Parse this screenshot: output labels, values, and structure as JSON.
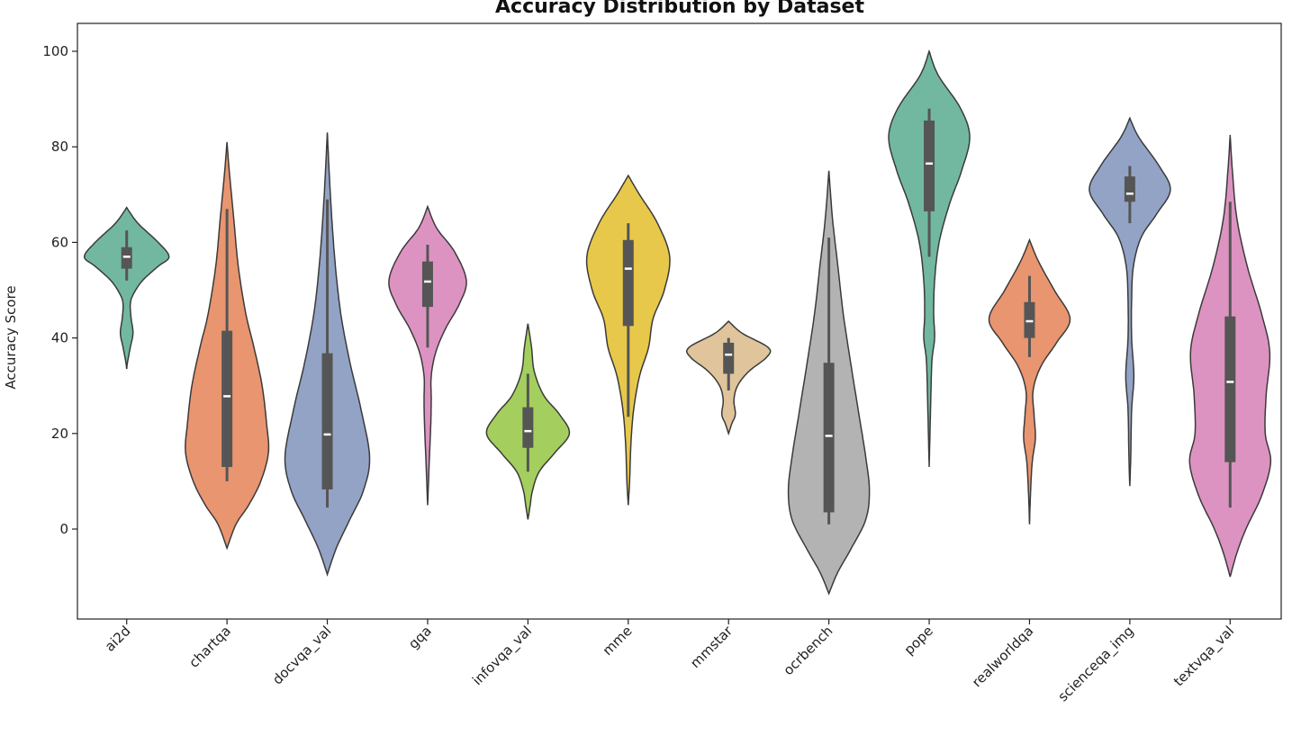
{
  "chart_data": {
    "type": "violin",
    "title": "Accuracy Distribution by Dataset",
    "xlabel": "",
    "ylabel": "Accuracy Score",
    "ylim": [
      -18,
      106
    ],
    "yticks": [
      0,
      20,
      40,
      60,
      80,
      100
    ],
    "grid": false,
    "categories": [
      "ai2d",
      "chartqa",
      "docvqa_val",
      "gqa",
      "infovqa_val",
      "mme",
      "mmstar",
      "ocrbench",
      "pope",
      "realworldqa",
      "scienceqa_img",
      "textvqa_val"
    ],
    "colors": [
      "#72b8a0",
      "#e9956f",
      "#93a3c6",
      "#dd93c1",
      "#a4cf5e",
      "#e7c84a",
      "#e0c49b",
      "#b3b3b3",
      "#72b8a0",
      "#e9956f",
      "#93a3c6",
      "#dd93c1"
    ],
    "box_color": "#555555",
    "median_color": "#ffffff",
    "violins": [
      {
        "name": "ai2d",
        "q1": 54.5,
        "median": 57,
        "q3": 59,
        "whisker_low": 52,
        "whisker_high": 62.5,
        "density": [
          [
            67.3,
            0
          ],
          [
            64,
            0.25
          ],
          [
            60,
            0.7
          ],
          [
            57,
            0.94
          ],
          [
            55,
            0.7
          ],
          [
            52,
            0.35
          ],
          [
            49,
            0.14
          ],
          [
            47,
            0.08
          ],
          [
            44,
            0.1
          ],
          [
            41,
            0.14
          ],
          [
            38,
            0.08
          ],
          [
            35,
            0.02
          ],
          [
            33.5,
            0
          ]
        ]
      },
      {
        "name": "chartqa",
        "q1": 13,
        "median": 27.8,
        "q3": 41.5,
        "whisker_low": 10,
        "whisker_high": 67,
        "density": [
          [
            81,
            0
          ],
          [
            75,
            0.05
          ],
          [
            65,
            0.15
          ],
          [
            55,
            0.25
          ],
          [
            45,
            0.42
          ],
          [
            38,
            0.6
          ],
          [
            30,
            0.78
          ],
          [
            22,
            0.88
          ],
          [
            16,
            0.92
          ],
          [
            10,
            0.75
          ],
          [
            5,
            0.48
          ],
          [
            1,
            0.2
          ],
          [
            -4,
            0
          ]
        ]
      },
      {
        "name": "docvqa_val",
        "q1": 8.3,
        "median": 19.8,
        "q3": 36.8,
        "whisker_low": 4.5,
        "whisker_high": 69,
        "density": [
          [
            83,
            0
          ],
          [
            75,
            0.04
          ],
          [
            65,
            0.1
          ],
          [
            55,
            0.18
          ],
          [
            45,
            0.3
          ],
          [
            35,
            0.5
          ],
          [
            25,
            0.75
          ],
          [
            15,
            0.94
          ],
          [
            8,
            0.8
          ],
          [
            2,
            0.5
          ],
          [
            -4,
            0.2
          ],
          [
            -9.5,
            0
          ]
        ]
      },
      {
        "name": "gqa",
        "q1": 46.5,
        "median": 51.8,
        "q3": 56,
        "whisker_low": 38,
        "whisker_high": 59.5,
        "density": [
          [
            67.5,
            0
          ],
          [
            63,
            0.2
          ],
          [
            58,
            0.6
          ],
          [
            52,
            0.86
          ],
          [
            47,
            0.7
          ],
          [
            42,
            0.4
          ],
          [
            37,
            0.18
          ],
          [
            32,
            0.08
          ],
          [
            27,
            0.08
          ],
          [
            22,
            0.07
          ],
          [
            15,
            0.04
          ],
          [
            10,
            0.02
          ],
          [
            5,
            0
          ]
        ]
      },
      {
        "name": "infovqa_val",
        "q1": 17,
        "median": 20.5,
        "q3": 25.5,
        "whisker_low": 12,
        "whisker_high": 32.5,
        "density": [
          [
            43,
            0
          ],
          [
            38,
            0.08
          ],
          [
            33,
            0.14
          ],
          [
            28,
            0.35
          ],
          [
            24,
            0.7
          ],
          [
            20,
            0.92
          ],
          [
            16,
            0.6
          ],
          [
            12,
            0.25
          ],
          [
            8,
            0.1
          ],
          [
            5,
            0.05
          ],
          [
            2,
            0
          ]
        ]
      },
      {
        "name": "mme",
        "q1": 42.5,
        "median": 54.5,
        "q3": 60.5,
        "whisker_low": 23.5,
        "whisker_high": 64,
        "density": [
          [
            74,
            0
          ],
          [
            70,
            0.25
          ],
          [
            64,
            0.65
          ],
          [
            57,
            0.92
          ],
          [
            50,
            0.8
          ],
          [
            44,
            0.55
          ],
          [
            38,
            0.45
          ],
          [
            32,
            0.25
          ],
          [
            25,
            0.12
          ],
          [
            18,
            0.06
          ],
          [
            10,
            0.03
          ],
          [
            5,
            0
          ]
        ]
      },
      {
        "name": "mmstar",
        "q1": 32.5,
        "median": 36.5,
        "q3": 39,
        "whisker_low": 29,
        "whisker_high": 40,
        "density": [
          [
            43.5,
            0
          ],
          [
            41,
            0.3
          ],
          [
            38,
            0.88
          ],
          [
            36,
            0.85
          ],
          [
            33,
            0.45
          ],
          [
            30,
            0.2
          ],
          [
            27,
            0.12
          ],
          [
            24,
            0.15
          ],
          [
            22,
            0.07
          ],
          [
            20,
            0
          ]
        ]
      },
      {
        "name": "ocrbench",
        "q1": 3.5,
        "median": 19.5,
        "q3": 34.8,
        "whisker_low": 1,
        "whisker_high": 61,
        "density": [
          [
            75,
            0
          ],
          [
            65,
            0.08
          ],
          [
            55,
            0.2
          ],
          [
            45,
            0.32
          ],
          [
            35,
            0.48
          ],
          [
            25,
            0.65
          ],
          [
            15,
            0.82
          ],
          [
            8,
            0.9
          ],
          [
            2,
            0.82
          ],
          [
            -4,
            0.5
          ],
          [
            -9,
            0.2
          ],
          [
            -13.5,
            0
          ]
        ]
      },
      {
        "name": "pope",
        "q1": 66.5,
        "median": 76.5,
        "q3": 85.5,
        "whisker_low": 57,
        "whisker_high": 88,
        "density": [
          [
            100,
            0
          ],
          [
            95,
            0.2
          ],
          [
            88,
            0.7
          ],
          [
            82,
            0.9
          ],
          [
            75,
            0.72
          ],
          [
            68,
            0.45
          ],
          [
            60,
            0.22
          ],
          [
            52,
            0.12
          ],
          [
            45,
            0.1
          ],
          [
            40,
            0.12
          ],
          [
            35,
            0.06
          ],
          [
            25,
            0.03
          ],
          [
            13,
            0
          ]
        ]
      },
      {
        "name": "realworldqa",
        "q1": 40,
        "median": 43.5,
        "q3": 47.5,
        "whisker_low": 36,
        "whisker_high": 53,
        "density": [
          [
            60.5,
            0
          ],
          [
            56,
            0.2
          ],
          [
            50,
            0.55
          ],
          [
            44,
            0.9
          ],
          [
            39,
            0.6
          ],
          [
            34,
            0.25
          ],
          [
            29,
            0.08
          ],
          [
            24,
            0.1
          ],
          [
            19,
            0.13
          ],
          [
            14,
            0.06
          ],
          [
            7,
            0.02
          ],
          [
            1,
            0
          ]
        ]
      },
      {
        "name": "scienceqa_img",
        "q1": 68.5,
        "median": 70.2,
        "q3": 73.8,
        "whisker_low": 64,
        "whisker_high": 76,
        "density": [
          [
            86,
            0
          ],
          [
            82,
            0.2
          ],
          [
            76,
            0.65
          ],
          [
            71,
            0.9
          ],
          [
            66,
            0.6
          ],
          [
            61,
            0.25
          ],
          [
            55,
            0.08
          ],
          [
            48,
            0.04
          ],
          [
            40,
            0.04
          ],
          [
            32,
            0.09
          ],
          [
            25,
            0.04
          ],
          [
            15,
            0.02
          ],
          [
            9,
            0
          ]
        ]
      },
      {
        "name": "textvqa_val",
        "q1": 14,
        "median": 30.8,
        "q3": 44.5,
        "whisker_low": 4.5,
        "whisker_high": 68.5,
        "density": [
          [
            82.5,
            0
          ],
          [
            75,
            0.05
          ],
          [
            65,
            0.15
          ],
          [
            55,
            0.38
          ],
          [
            45,
            0.7
          ],
          [
            37,
            0.88
          ],
          [
            28,
            0.8
          ],
          [
            20,
            0.78
          ],
          [
            14,
            0.9
          ],
          [
            7,
            0.7
          ],
          [
            0,
            0.35
          ],
          [
            -5,
            0.15
          ],
          [
            -10,
            0
          ]
        ]
      }
    ]
  }
}
